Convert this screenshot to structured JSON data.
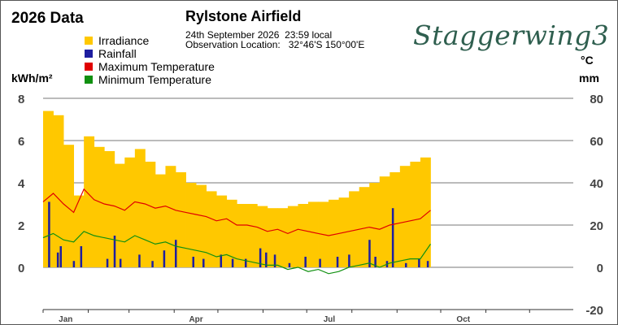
{
  "header": {
    "title": "2026 Data",
    "station": "Rylstone Airfield",
    "observation_time": "24th September 2026  23:59 local",
    "observation_location": "Observation Location:   32°46'S 150°00'E",
    "brand": "Staggerwing3"
  },
  "units": {
    "left": "kWh/m²",
    "right_top": "°C",
    "right_bottom": "mm"
  },
  "colors": {
    "irradiance": "#ffc800",
    "rainfall": "#1e1ea0",
    "max_temp": "#e00000",
    "min_temp": "#109010",
    "grid": "#777777",
    "brand": "#2f5f4f"
  },
  "chart_data": {
    "type": "bar",
    "x_axis": {
      "type": "date",
      "range": [
        "2026-01-01",
        "2026-12-31"
      ],
      "tick_labels": [
        "Jan",
        "Apr",
        "Jul",
        "Oct"
      ]
    },
    "left_axis": {
      "label": "kWh/m²",
      "range": [
        0,
        8
      ],
      "ticks": [
        0,
        2,
        4,
        6,
        8
      ]
    },
    "right_axis": {
      "label": "°C / mm",
      "range": [
        -20,
        80
      ],
      "ticks": [
        -20,
        0,
        20,
        40,
        60,
        80
      ]
    },
    "grid": true,
    "legend_placement": "top-left",
    "series": [
      {
        "name": "Irradiance",
        "type": "bar",
        "axis": "left",
        "resolution": "weekly average (kWh/m²)",
        "x": [
          "2026-01-01",
          "2026-01-08",
          "2026-01-15",
          "2026-01-22",
          "2026-01-29",
          "2026-02-05",
          "2026-02-12",
          "2026-02-19",
          "2026-02-26",
          "2026-03-05",
          "2026-03-12",
          "2026-03-19",
          "2026-03-26",
          "2026-04-02",
          "2026-04-09",
          "2026-04-16",
          "2026-04-23",
          "2026-04-30",
          "2026-05-07",
          "2026-05-14",
          "2026-05-21",
          "2026-05-28",
          "2026-06-04",
          "2026-06-11",
          "2026-06-18",
          "2026-06-25",
          "2026-07-02",
          "2026-07-09",
          "2026-07-16",
          "2026-07-23",
          "2026-07-30",
          "2026-08-06",
          "2026-08-13",
          "2026-08-20",
          "2026-08-27",
          "2026-09-03",
          "2026-09-10",
          "2026-09-17"
        ],
        "values": [
          7.4,
          7.2,
          5.8,
          3.4,
          6.2,
          5.7,
          5.5,
          4.9,
          5.2,
          5.6,
          5.0,
          4.4,
          4.8,
          4.5,
          4.0,
          3.9,
          3.6,
          3.4,
          3.2,
          3.0,
          3.0,
          2.9,
          2.8,
          2.8,
          2.9,
          3.0,
          3.1,
          3.1,
          3.2,
          3.3,
          3.6,
          3.8,
          4.0,
          4.3,
          4.5,
          4.8,
          5.0,
          5.2
        ]
      },
      {
        "name": "Rainfall",
        "type": "bar",
        "axis": "right",
        "unit": "mm",
        "x": [
          "2026-01-05",
          "2026-01-11",
          "2026-01-13",
          "2026-01-22",
          "2026-01-27",
          "2026-02-14",
          "2026-02-19",
          "2026-02-23",
          "2026-03-08",
          "2026-03-17",
          "2026-03-25",
          "2026-04-02",
          "2026-04-14",
          "2026-04-21",
          "2026-05-03",
          "2026-05-11",
          "2026-05-20",
          "2026-05-30",
          "2026-06-03",
          "2026-06-09",
          "2026-06-19",
          "2026-06-30",
          "2026-07-10",
          "2026-07-22",
          "2026-07-30",
          "2026-08-13",
          "2026-08-17",
          "2026-08-25",
          "2026-08-29",
          "2026-09-07",
          "2026-09-16",
          "2026-09-22"
        ],
        "values": [
          31,
          7,
          10,
          3,
          10,
          4,
          15,
          4,
          6,
          3,
          8,
          13,
          5,
          4,
          6,
          4,
          4,
          9,
          7,
          6,
          2,
          5,
          4,
          5,
          6,
          13,
          5,
          3,
          28,
          2,
          4,
          3
        ]
      },
      {
        "name": "Maximum Temperature",
        "type": "line",
        "axis": "right",
        "unit": "°C",
        "x": [
          "2026-01-01",
          "2026-01-08",
          "2026-01-15",
          "2026-01-22",
          "2026-01-29",
          "2026-02-05",
          "2026-02-12",
          "2026-02-19",
          "2026-02-26",
          "2026-03-05",
          "2026-03-12",
          "2026-03-19",
          "2026-03-26",
          "2026-04-02",
          "2026-04-09",
          "2026-04-16",
          "2026-04-23",
          "2026-04-30",
          "2026-05-07",
          "2026-05-14",
          "2026-05-21",
          "2026-05-28",
          "2026-06-04",
          "2026-06-11",
          "2026-06-18",
          "2026-06-25",
          "2026-07-02",
          "2026-07-09",
          "2026-07-16",
          "2026-07-23",
          "2026-07-30",
          "2026-08-06",
          "2026-08-13",
          "2026-08-20",
          "2026-08-27",
          "2026-09-03",
          "2026-09-10",
          "2026-09-17",
          "2026-09-24"
        ],
        "values": [
          31,
          35,
          30,
          26,
          37,
          32,
          30,
          29,
          27,
          31,
          30,
          28,
          29,
          27,
          26,
          25,
          24,
          22,
          23,
          20,
          20,
          19,
          17,
          18,
          16,
          18,
          17,
          16,
          15,
          16,
          17,
          18,
          19,
          18,
          20,
          21,
          22,
          23,
          27
        ]
      },
      {
        "name": "Minimum Temperature",
        "type": "line",
        "axis": "right",
        "unit": "°C",
        "x": [
          "2026-01-01",
          "2026-01-08",
          "2026-01-15",
          "2026-01-22",
          "2026-01-29",
          "2026-02-05",
          "2026-02-12",
          "2026-02-19",
          "2026-02-26",
          "2026-03-05",
          "2026-03-12",
          "2026-03-19",
          "2026-03-26",
          "2026-04-02",
          "2026-04-09",
          "2026-04-16",
          "2026-04-23",
          "2026-04-30",
          "2026-05-07",
          "2026-05-14",
          "2026-05-21",
          "2026-05-28",
          "2026-06-04",
          "2026-06-11",
          "2026-06-18",
          "2026-06-25",
          "2026-07-02",
          "2026-07-09",
          "2026-07-16",
          "2026-07-23",
          "2026-07-30",
          "2026-08-06",
          "2026-08-13",
          "2026-08-20",
          "2026-08-27",
          "2026-09-03",
          "2026-09-10",
          "2026-09-17",
          "2026-09-24"
        ],
        "values": [
          14,
          16,
          13,
          12,
          17,
          15,
          14,
          13,
          12,
          15,
          13,
          11,
          12,
          10,
          9,
          8,
          7,
          5,
          6,
          4,
          3,
          2,
          1,
          1,
          -1,
          0,
          -2,
          -1,
          -3,
          -2,
          0,
          1,
          2,
          0,
          2,
          3,
          4,
          4,
          11
        ]
      }
    ]
  }
}
